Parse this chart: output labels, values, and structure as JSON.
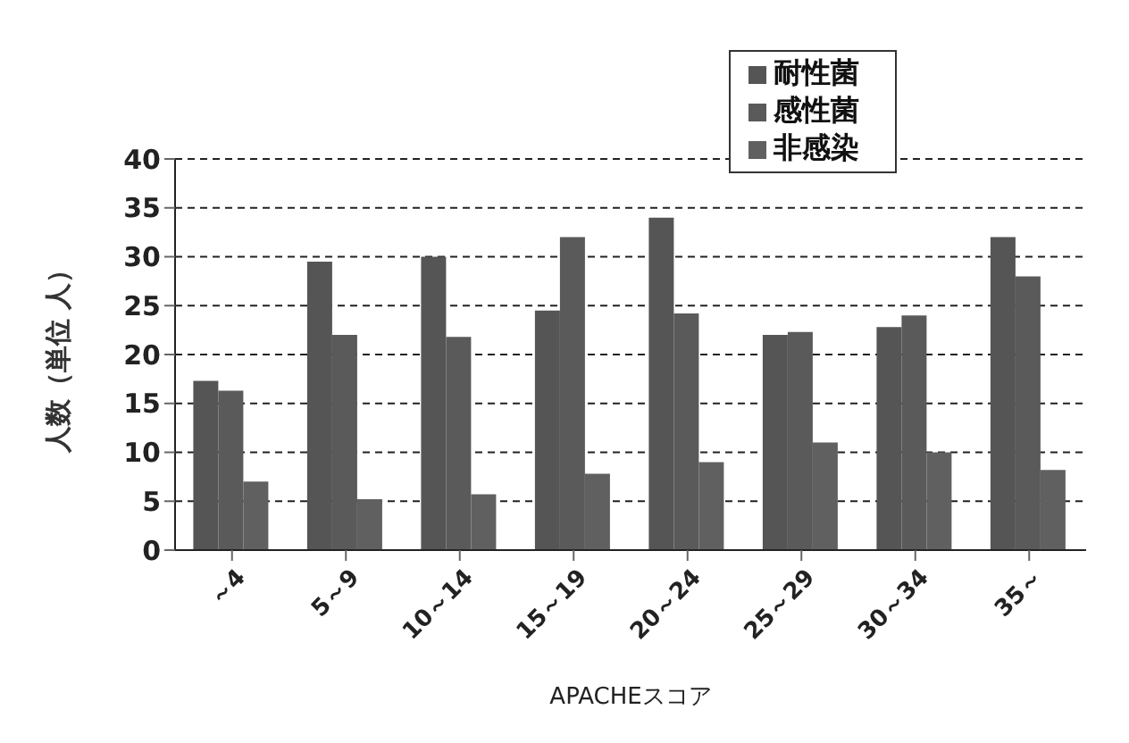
{
  "chart_data": {
    "type": "bar",
    "xlabel": "APACHEスコア",
    "ylabel": "人数（単位 人）",
    "categories": [
      "～4",
      "5～9",
      "10～14",
      "15～19",
      "20～24",
      "25～29",
      "30～34",
      "35～"
    ],
    "series": [
      {
        "name": "耐性菌",
        "color": "#555555",
        "values": [
          17.3,
          29.5,
          30,
          24.5,
          34,
          22,
          22.8,
          32
        ]
      },
      {
        "name": "感性菌",
        "color": "#5a5a5a",
        "values": [
          16.3,
          22,
          21.8,
          32,
          24.2,
          22.3,
          24,
          28
        ]
      },
      {
        "name": "非感染",
        "color": "#606060",
        "values": [
          7,
          5.2,
          5.7,
          7.8,
          9,
          11,
          10,
          8.2
        ]
      }
    ],
    "ylim": [
      0,
      40
    ],
    "yticks": [
      0,
      5,
      10,
      15,
      20,
      25,
      30,
      35,
      40
    ],
    "grid": "y",
    "legend": "top right"
  }
}
